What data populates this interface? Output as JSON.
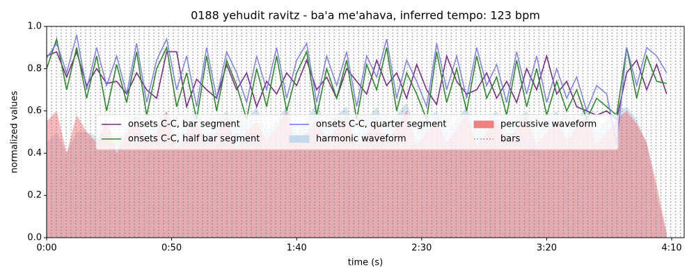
{
  "chart_data": {
    "type": "line",
    "title": "0188 yehudit ravitz - ba'a me'ahava, inferred tempo: 123 bpm",
    "xlabel": "time (s)",
    "ylabel": "normalized values",
    "xlim": [
      0,
      255
    ],
    "xticks": [
      {
        "value": 0,
        "label": "0:00"
      },
      {
        "value": 50,
        "label": "0:50"
      },
      {
        "value": 100,
        "label": "1:40"
      },
      {
        "value": 150,
        "label": "2:30"
      },
      {
        "value": 200,
        "label": "3:20"
      },
      {
        "value": 250,
        "label": "4:10"
      }
    ],
    "ylim": [
      0,
      1
    ],
    "yticks": [
      {
        "value": 0,
        "label": "0.0"
      },
      {
        "value": 0.2,
        "label": "0.2"
      },
      {
        "value": 0.4,
        "label": "0.4"
      },
      {
        "value": 0.6,
        "label": "0.6"
      },
      {
        "value": 0.8,
        "label": "0.8"
      },
      {
        "value": 1,
        "label": "1.0"
      }
    ],
    "legend": "center",
    "x": [
      0,
      4,
      8,
      12,
      16,
      20,
      24,
      28,
      32,
      36,
      40,
      44,
      48,
      52,
      56,
      60,
      64,
      68,
      72,
      76,
      80,
      84,
      88,
      92,
      96,
      100,
      104,
      108,
      112,
      116,
      120,
      124,
      128,
      132,
      136,
      140,
      144,
      148,
      152,
      156,
      160,
      164,
      168,
      172,
      176,
      180,
      184,
      188,
      192,
      196,
      200,
      204,
      208,
      212,
      216,
      220,
      224,
      228,
      232,
      236,
      240,
      244,
      248
    ],
    "series": [
      {
        "name": "onsets C-C, bar segment",
        "kind": "line",
        "color": "#7b2a86",
        "values": [
          0.86,
          0.88,
          0.76,
          0.88,
          0.72,
          0.8,
          0.73,
          0.74,
          0.68,
          0.78,
          0.7,
          0.66,
          0.88,
          0.88,
          0.62,
          0.75,
          0.7,
          0.66,
          0.82,
          0.7,
          0.78,
          0.62,
          0.74,
          0.68,
          0.78,
          0.72,
          0.84,
          0.7,
          0.76,
          0.66,
          0.8,
          0.74,
          0.68,
          0.84,
          0.72,
          0.78,
          0.66,
          0.82,
          0.7,
          0.63,
          0.86,
          0.74,
          0.68,
          0.7,
          0.78,
          0.66,
          0.74,
          0.64,
          0.8,
          0.7,
          0.86,
          0.68,
          0.74,
          0.62,
          0.6,
          0.58,
          0.6,
          0.56,
          0.78,
          0.84,
          0.7,
          0.82,
          0.68
        ]
      },
      {
        "name": "onsets C-C, half bar segment",
        "kind": "line",
        "color": "#2a8a2a",
        "values": [
          0.8,
          0.94,
          0.7,
          0.9,
          0.66,
          0.86,
          0.6,
          0.82,
          0.64,
          0.88,
          0.58,
          0.8,
          0.9,
          0.62,
          0.78,
          0.56,
          0.86,
          0.6,
          0.84,
          0.72,
          0.56,
          0.8,
          0.62,
          0.86,
          0.6,
          0.78,
          0.88,
          0.58,
          0.8,
          0.66,
          0.84,
          0.56,
          0.82,
          0.7,
          0.9,
          0.6,
          0.78,
          0.68,
          0.56,
          0.88,
          0.64,
          0.8,
          0.6,
          0.86,
          0.66,
          0.76,
          0.58,
          0.84,
          0.62,
          0.8,
          0.58,
          0.74,
          0.6,
          0.7,
          0.56,
          0.66,
          0.62,
          0.58,
          0.9,
          0.66,
          0.86,
          0.74,
          0.73
        ]
      },
      {
        "name": "onsets C-C, quarter segment",
        "kind": "line",
        "color": "#6f6ff0",
        "values": [
          0.85,
          0.92,
          0.78,
          0.96,
          0.7,
          0.9,
          0.72,
          0.86,
          0.68,
          0.92,
          0.64,
          0.84,
          0.94,
          0.7,
          0.86,
          0.62,
          0.9,
          0.66,
          0.88,
          0.78,
          0.64,
          0.86,
          0.7,
          0.9,
          0.66,
          0.84,
          0.92,
          0.64,
          0.86,
          0.72,
          0.88,
          0.62,
          0.86,
          0.76,
          0.94,
          0.66,
          0.84,
          0.74,
          0.62,
          0.92,
          0.7,
          0.86,
          0.66,
          0.9,
          0.72,
          0.82,
          0.64,
          0.88,
          0.68,
          0.86,
          0.64,
          0.8,
          0.66,
          0.76,
          0.6,
          0.72,
          0.68,
          0.44,
          0.9,
          0.72,
          0.9,
          0.86,
          0.78
        ]
      },
      {
        "name": "harmonic waveform",
        "kind": "area",
        "color": "#c6d9ea",
        "values": [
          0.45,
          0.5,
          0.4,
          0.5,
          0.5,
          0.48,
          0.55,
          0.45,
          0.52,
          0.58,
          0.5,
          0.55,
          0.6,
          0.5,
          0.55,
          0.6,
          0.5,
          0.55,
          0.6,
          0.52,
          0.56,
          0.62,
          0.5,
          0.56,
          0.62,
          0.5,
          0.56,
          0.64,
          0.52,
          0.58,
          0.62,
          0.5,
          0.56,
          0.62,
          0.52,
          0.58,
          0.64,
          0.5,
          0.56,
          0.6,
          0.5,
          0.56,
          0.62,
          0.5,
          0.56,
          0.6,
          0.5,
          0.56,
          0.6,
          0.5,
          0.55,
          0.6,
          0.5,
          0.56,
          0.62,
          0.5,
          0.56,
          0.6,
          0.62,
          0.56,
          0.45,
          0.2,
          0.02
        ]
      },
      {
        "name": "percussive waveform",
        "kind": "area",
        "color": "#f08080",
        "values": [
          0.55,
          0.6,
          0.4,
          0.58,
          0.5,
          0.45,
          0.56,
          0.4,
          0.5,
          0.55,
          0.45,
          0.5,
          0.6,
          0.42,
          0.5,
          0.55,
          0.45,
          0.5,
          0.58,
          0.42,
          0.5,
          0.55,
          0.46,
          0.52,
          0.6,
          0.44,
          0.5,
          0.56,
          0.46,
          0.52,
          0.58,
          0.44,
          0.5,
          0.56,
          0.46,
          0.52,
          0.6,
          0.44,
          0.5,
          0.55,
          0.45,
          0.52,
          0.58,
          0.44,
          0.5,
          0.56,
          0.46,
          0.52,
          0.58,
          0.44,
          0.5,
          0.55,
          0.46,
          0.52,
          0.58,
          0.44,
          0.5,
          0.56,
          0.6,
          0.54,
          0.45,
          0.25,
          0.02
        ]
      }
    ],
    "bars": {
      "name": "bars",
      "color": "#808080",
      "x": [
        0,
        1.95,
        3.9,
        5.85,
        7.8,
        9.75,
        11.7,
        13.65,
        15.6,
        17.55,
        19.5,
        21.45,
        23.4,
        25.35,
        27.3,
        29.25,
        31.2,
        33.15,
        35.1,
        37.05,
        39,
        40.95,
        42.9,
        44.85,
        46.8,
        48.75,
        50.7,
        52.65,
        54.6,
        56.55,
        58.5,
        60.45,
        62.4,
        64.35,
        66.3,
        68.25,
        70.2,
        72.15,
        74.1,
        76.05,
        78,
        79.95,
        81.9,
        83.85,
        85.8,
        87.75,
        89.7,
        91.65,
        93.6,
        95.55,
        97.5,
        99.45,
        101.4,
        103.35,
        105.3,
        107.25,
        109.2,
        111.15,
        113.1,
        115.05,
        117,
        118.95,
        120.9,
        122.85,
        124.8,
        126.75,
        128.7,
        130.65,
        132.6,
        134.55,
        136.5,
        138.45,
        140.4,
        142.35,
        144.3,
        146.25,
        148.2,
        150.15,
        152.1,
        154.05,
        156,
        157.95,
        159.9,
        161.85,
        163.8,
        165.75,
        167.7,
        169.65,
        171.6,
        173.55,
        175.5,
        177.45,
        179.4,
        181.35,
        183.3,
        185.25,
        187.2,
        189.15,
        191.1,
        193.05,
        195,
        196.95,
        198.9,
        200.85,
        202.8,
        204.75,
        206.7,
        208.65,
        210.6,
        212.55,
        214.5,
        216.45,
        218.4,
        220.35,
        222.3,
        224.25,
        226.2,
        228.15,
        230.1,
        232.05,
        234,
        235.95,
        237.9,
        239.85,
        241.8,
        243.75,
        245.7,
        247.65,
        249.6,
        251.55,
        253.5
      ]
    }
  }
}
